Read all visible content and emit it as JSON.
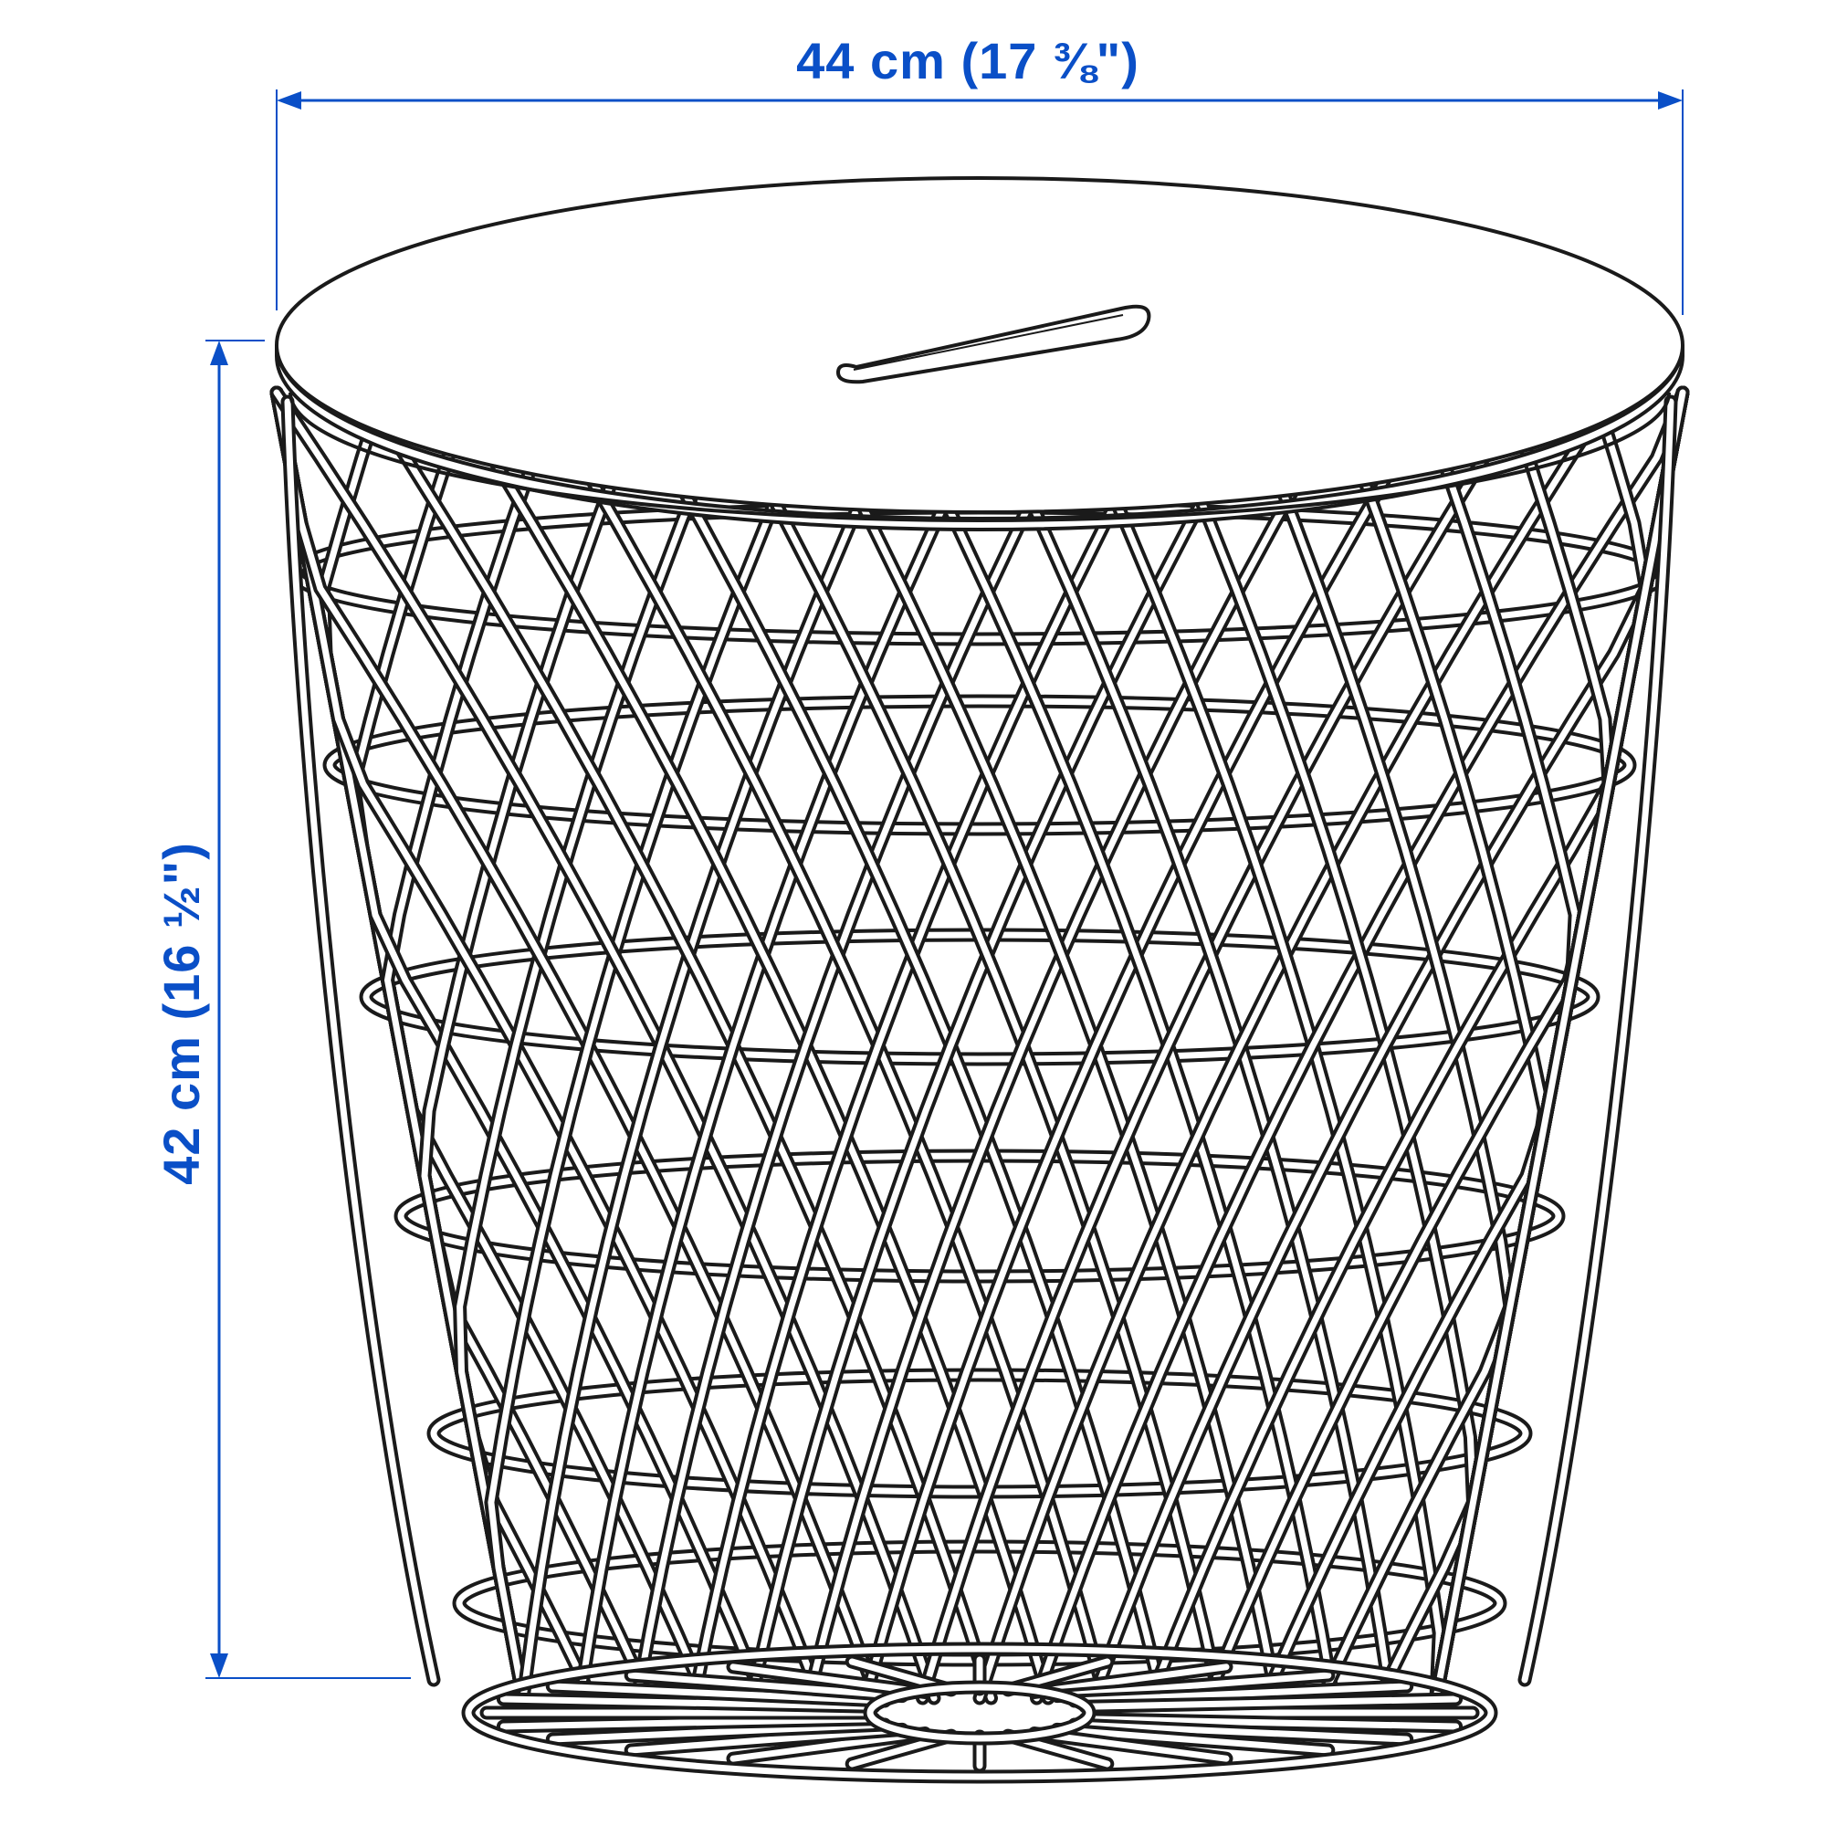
{
  "dimensions": {
    "width_label": "44 cm (17 ⅜\")",
    "height_label": "42 cm (16 ½\")"
  },
  "colors": {
    "dimension": "#0a4fc7",
    "line_art": "#1a1a1a",
    "background": "#ffffff"
  }
}
